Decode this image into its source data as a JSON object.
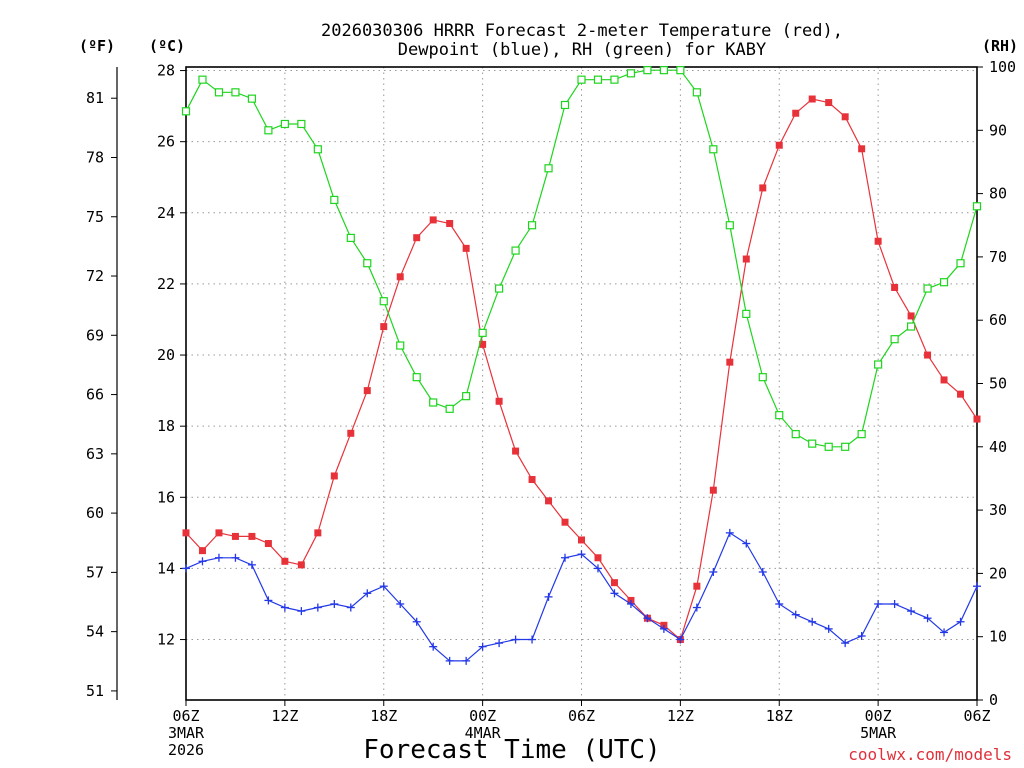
{
  "chart_data": {
    "type": "line",
    "title_line1": "2026030306 HRRR Forecast 2-meter Temperature (red),",
    "title_line2": "Dewpoint (blue), RH (green) for KABY",
    "xlabel": "Forecast Time (UTC)",
    "credit": "coolwx.com/models",
    "unit_labels": {
      "left_f": "(ºF)",
      "left_c": "(ºC)",
      "right_rh": "(RH)"
    },
    "x_range_hours": [
      0,
      48
    ],
    "x_ticks": [
      {
        "hour": 0,
        "label": "06Z",
        "date": "3MAR",
        "year": "2026"
      },
      {
        "hour": 6,
        "label": "12Z",
        "date": "",
        "year": ""
      },
      {
        "hour": 12,
        "label": "18Z",
        "date": "",
        "year": ""
      },
      {
        "hour": 18,
        "label": "00Z",
        "date": "4MAR",
        "year": ""
      },
      {
        "hour": 24,
        "label": "06Z",
        "date": "",
        "year": ""
      },
      {
        "hour": 30,
        "label": "12Z",
        "date": "",
        "year": ""
      },
      {
        "hour": 36,
        "label": "18Z",
        "date": "",
        "year": ""
      },
      {
        "hour": 42,
        "label": "00Z",
        "date": "5MAR",
        "year": ""
      },
      {
        "hour": 48,
        "label": "06Z",
        "date": "",
        "year": ""
      }
    ],
    "celsius_range": [
      10.3,
      28.1
    ],
    "celsius_ticks": [
      "12",
      "14",
      "16",
      "18",
      "20",
      "22",
      "24",
      "26",
      "28"
    ],
    "fahrenheit_ticks": [
      "51",
      "54",
      "57",
      "60",
      "63",
      "66",
      "69",
      "72",
      "75",
      "78",
      "81"
    ],
    "rh_range": [
      0,
      100
    ],
    "rh_ticks": [
      "0",
      "10",
      "20",
      "30",
      "40",
      "50",
      "60",
      "70",
      "80",
      "90",
      "100"
    ],
    "series": [
      {
        "name": "Temperature",
        "units": "C",
        "color": "#e8323a",
        "marker": "filled-square",
        "values": [
          15.0,
          14.5,
          15.0,
          14.9,
          14.9,
          14.7,
          14.2,
          14.1,
          15.0,
          16.6,
          17.8,
          19.0,
          20.8,
          22.2,
          23.3,
          23.8,
          23.7,
          23.0,
          20.3,
          18.7,
          17.3,
          16.5,
          15.9,
          15.3,
          14.8,
          14.3,
          13.6,
          13.1,
          12.6,
          12.4,
          12.0,
          13.5,
          16.2,
          19.8,
          22.7,
          24.7,
          25.9,
          26.8,
          27.2,
          27.1,
          26.7,
          25.8,
          23.2,
          21.9,
          21.1,
          20.0,
          19.3,
          18.9,
          18.2
        ]
      },
      {
        "name": "Dewpoint",
        "units": "C",
        "color": "#2338e8",
        "marker": "plus",
        "values": [
          14.0,
          14.2,
          14.3,
          14.3,
          14.1,
          13.1,
          12.9,
          12.8,
          12.9,
          13.0,
          12.9,
          13.3,
          13.5,
          13.0,
          12.5,
          11.8,
          11.4,
          11.4,
          11.8,
          11.9,
          12.0,
          12.0,
          13.2,
          14.3,
          14.4,
          14.0,
          13.3,
          13.0,
          12.6,
          12.3,
          12.0,
          12.9,
          13.9,
          15.0,
          14.7,
          13.9,
          13.0,
          12.7,
          12.5,
          12.3,
          11.9,
          12.1,
          13.0,
          13.0,
          12.8,
          12.6,
          12.2,
          12.5,
          13.5
        ]
      },
      {
        "name": "RH",
        "units": "%",
        "color": "#1ed51e",
        "marker": "open-square",
        "values": [
          93,
          98,
          96,
          96,
          95,
          90,
          91,
          91,
          87,
          79,
          73,
          69,
          63,
          56,
          51,
          47,
          46,
          48,
          58,
          65,
          71,
          75,
          84,
          94,
          98,
          98,
          98,
          99,
          99.5,
          99.5,
          99.5,
          96,
          87,
          75,
          61,
          51,
          45,
          42,
          40.5,
          40,
          40,
          42,
          53,
          57,
          59,
          65,
          66,
          69,
          78
        ]
      }
    ]
  }
}
